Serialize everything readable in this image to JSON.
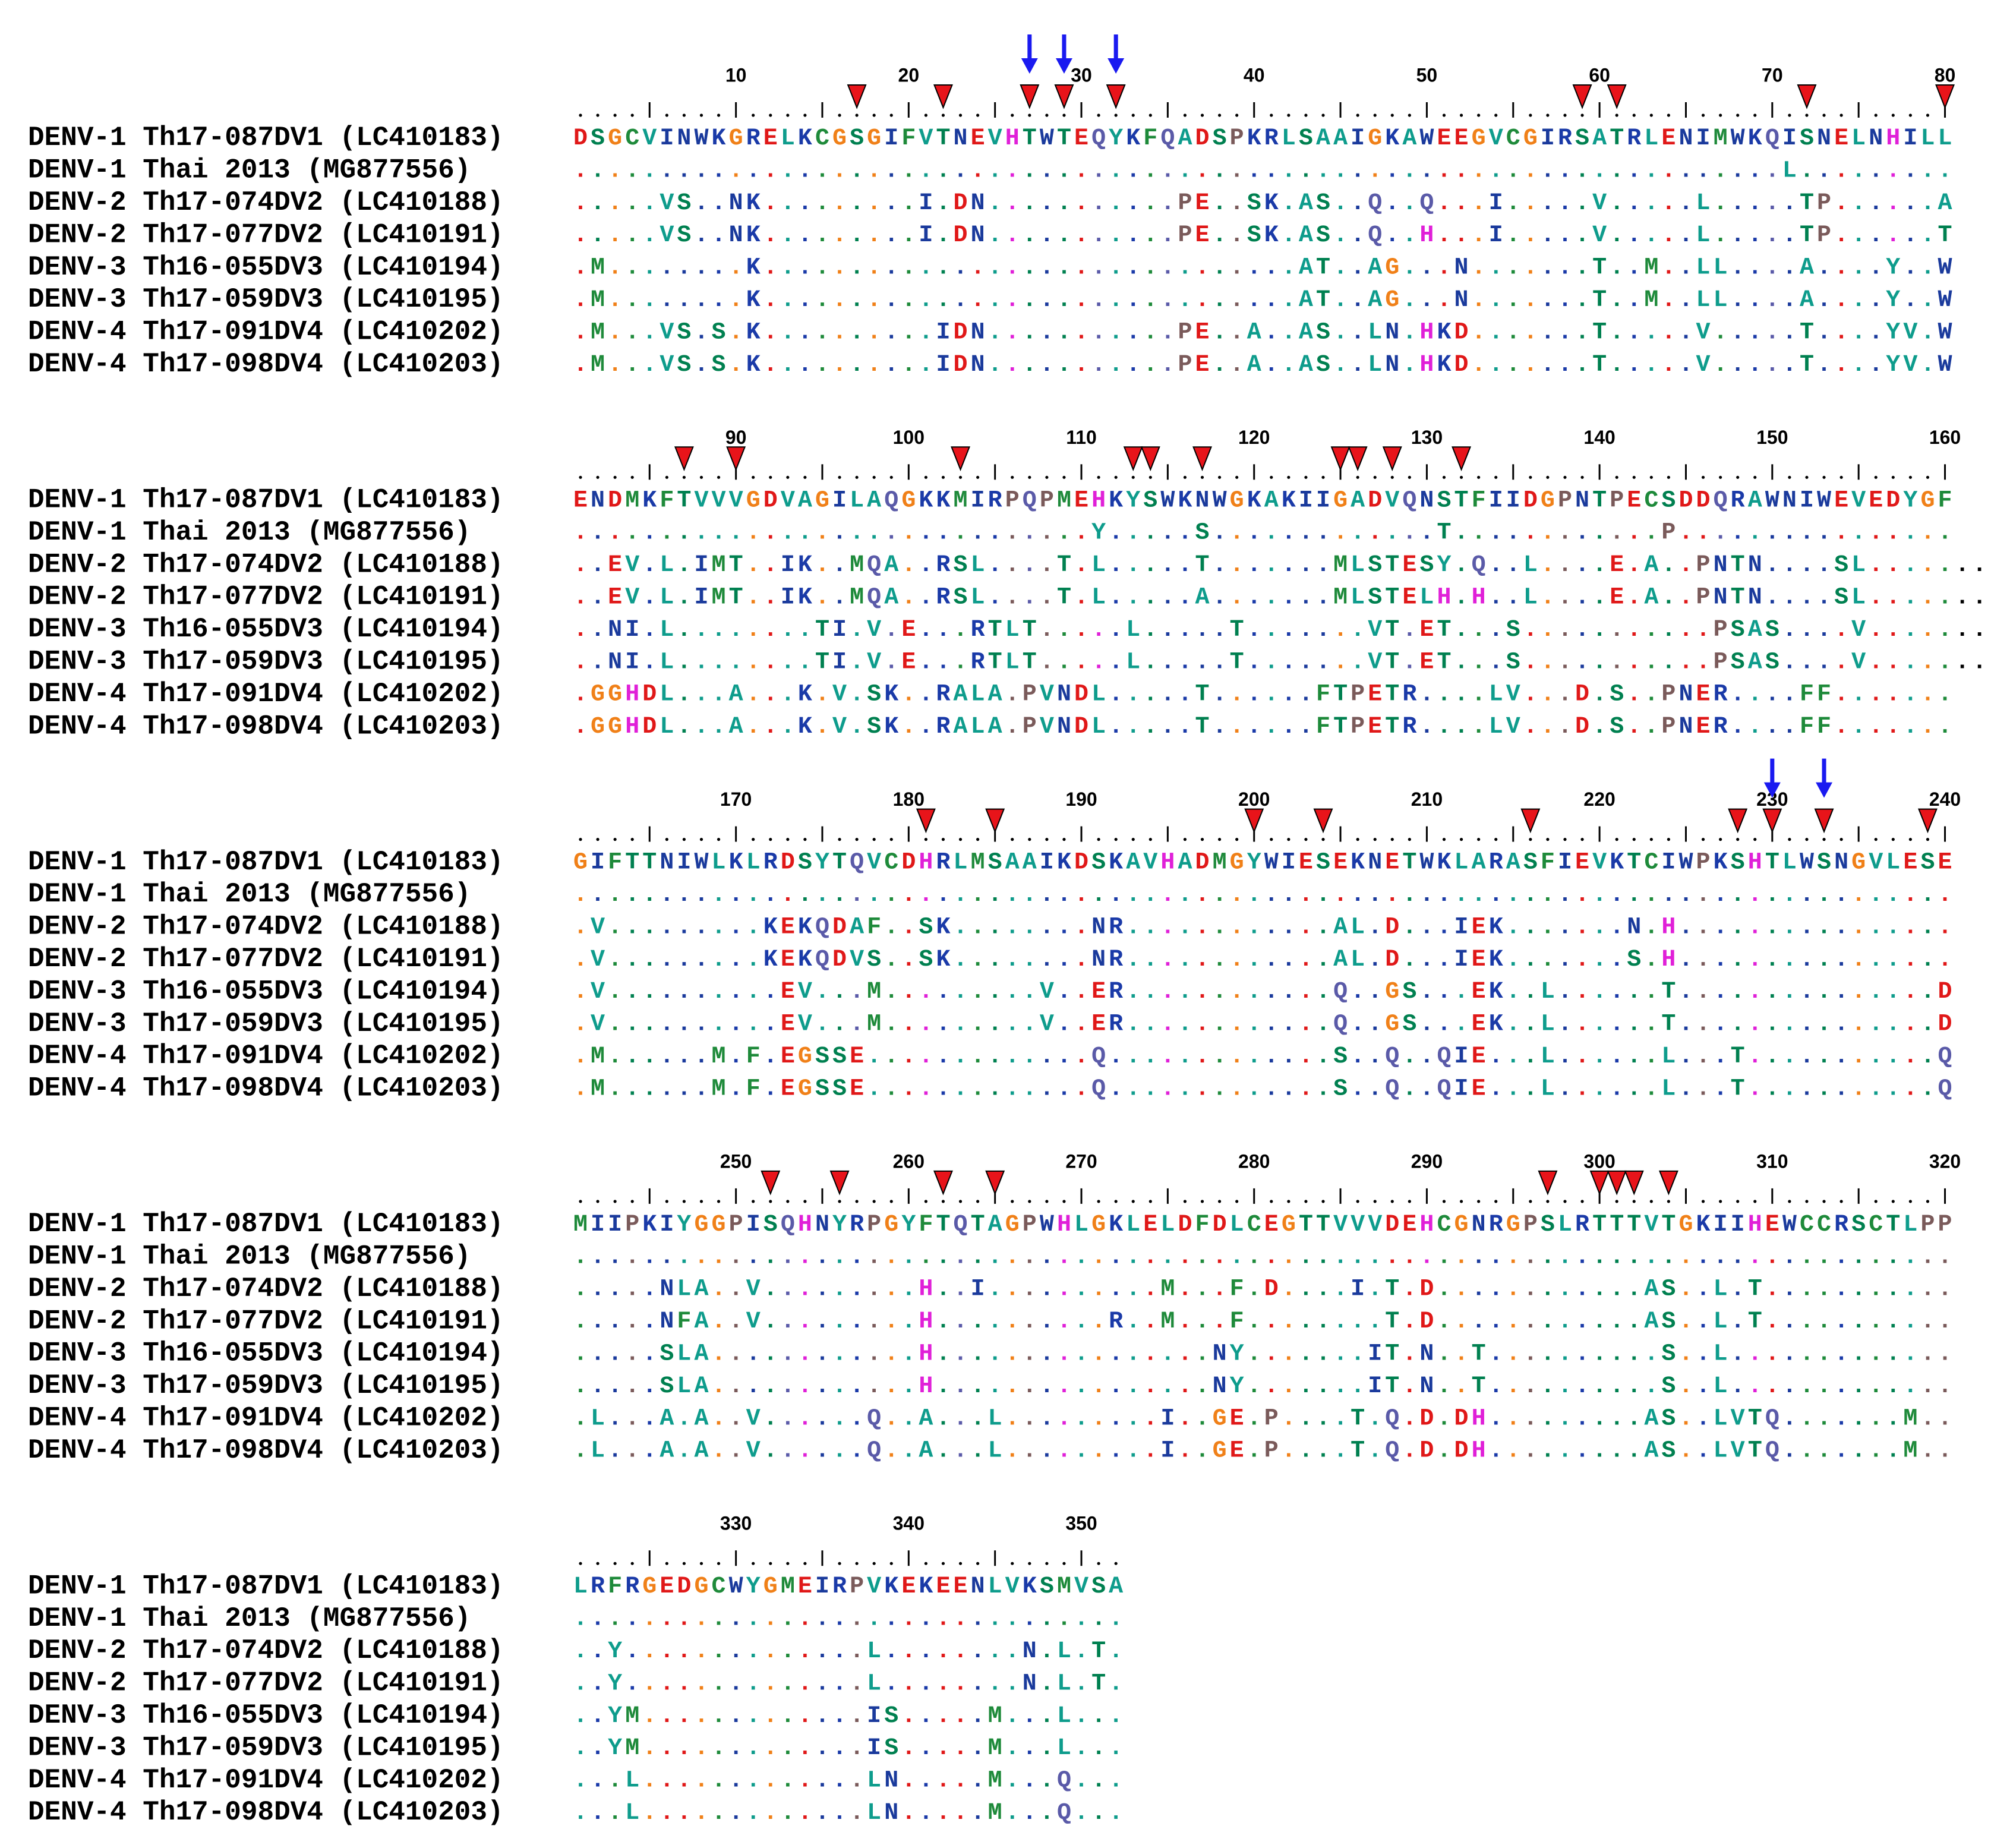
{
  "sequences": [
    {
      "name": "DENV-1 Th17-087DV1 (LC410183)",
      "segments": [
        "DSGCVINWKGRELKCGSGIFVTNEVHTWTEQYKFQADSPKRLSAAIGKAWEEGVCGIRSATRLENIMWKQISNELNHILL",
        "ENDMKFTVVVGDVAGILAQGKKMIRPQPMEHKYSWKNWGKAKIIGADVQNSTFIIDGPNTPECSDDQRAWNIWEVEDYGF",
        "GIFTTNIWLKLRDSYTQVCDHRLMSAAIKDSKAVHADMGYWIESEKNETWKLARASFIEVKTCIWPKSHTLWSNGVLESE",
        "MIIPKIYGGPISQHNYRPGYFTQTAGPWHLGKLELDFDLCEGTTVVVDEHCGNRGPSLRTTTVTGKIIHEWCCRSCTLPP",
        "LRFRGEDGCWYGMEIRPVKEKEENLVKSMVSA"
      ]
    },
    {
      "name": "DENV-1 Thai 2013 (MG877556)",
      "segments": [
        "......................................................................L.........",
        "..............................Y.....S.............T............P................",
        "................................................................................",
        "................................................................................",
        "................................"
      ]
    },
    {
      "name": "DENV-2 Th17-074DV2 (LC410188)",
      "segments": [
        ".....VS..NK.........I.DN...........PE..SK.AS..Q..Q...I.....V.....L.....TP......A",
        "..EV.L.IMT..IK..MQA..RSL....T.L.....T.......MLSTESY.Q..L....E.A..PNTN....SL.......",
        ".V.........KEKQDAF..SK........NR............AL.D...IEK.......N.H................",
        ".....NLA..V.........H..I..........M...F.D....I.T.D............AS..L.T...........",
        "..Y..............L........N.L.T."
      ]
    },
    {
      "name": "DENV-2 Th17-077DV2 (LC410191)",
      "segments": [
        ".....VS..NK.........I.DN...........PE..SK.AS..Q..H...I.....V.....L.....TP......T",
        "..EV.L.IMT..IK..MQA..RSL....T.L.....A.......MLSTELH.H..L....E.A..PNTN....SL.......",
        ".V.........KEKQDVS..SK........NR............AL.D...IEK.......S.H................",
        ".....NFA..V.........H..........R..M...F........T.D............AS..L.T...........",
        "..Y..............L........N.L.T."
      ]
    },
    {
      "name": "DENV-3 Th16-055DV3 (LC410194)",
      "segments": [
        ".M........K...............................AT..AG...N.......T..M..LL....A....Y..W",
        "..NI.L........TI.V.E...RTLT.....L.....T.......VT.ET...S...........PSAS....V........",
        ".V..........EV...M.........V..ER............Q..GS...EK..L......T...............D",
        ".....SLA............H................NY.......IT.N..T..........S..L.............",
        "..YM.............IS.....M...L..."
      ]
    },
    {
      "name": "DENV-3 Th17-059DV3 (LC410195)",
      "segments": [
        ".M........K...............................AT..AG...N.......T..M..LL....A....Y..W",
        "..NI.L........TI.V.E...RTLT.....L.....T.......VT.ET...S...........PSAS....V........",
        ".V..........EV...M.........V..ER............Q..GS...EK..L......T...............D",
        ".....SLA............H................NY.......IT.N..T..........S..L.............",
        "..YM.............IS.....M...L..."
      ]
    },
    {
      "name": "DENV-4 Th17-091DV4 (LC410202)",
      "segments": [
        ".M...VS.S.K..........IDN...........PE..A..AS..LN.HKD.......T.....V.....T....YV.W",
        ".GGHDL...A...K.V.SK..RALA.PVNDL.....T......FTPETR....LV...D.S..PNER....FF.......",
        ".M......M.F.EGSSE.............Q.............S..Q..QIE...L......L...T...........Q",
        ".L...A.A..V......Q..A...L.........I..GE.P....T.Q.D.DH.........AS..LVTQ.......M..",
        "...L.............LN.....M...Q..."
      ]
    },
    {
      "name": "DENV-4 Th17-098DV4 (LC410203)",
      "segments": [
        ".M...VS.S.K..........IDN...........PE..A..AS..LN.HKD.......T.....V.....T....YV.W",
        ".GGHDL...A...K.V.SK..RALA.PVNDL.....T......FTPETR....LV...D.S..PNER....FF.......",
        ".M......M.F.EGSSE.............Q.............S..Q..QIE...L......L...T...........Q",
        ".L...A.A..V......Q..A...L.........I..GE.P....T.Q.D.DH.........AS..LVTQ.......M..",
        "...L.............LN.....M...Q..."
      ]
    }
  ],
  "ruler_numbers": [
    10,
    20,
    30,
    40,
    50,
    60,
    70,
    80,
    90,
    100,
    110,
    120,
    130,
    140,
    150,
    160,
    170,
    180,
    190,
    200,
    210,
    220,
    230,
    240,
    250,
    260,
    270,
    280,
    290,
    300,
    310,
    320,
    330,
    340,
    350
  ],
  "red_triangles": [
    17,
    22,
    27,
    29,
    32,
    59,
    61,
    72,
    80,
    87,
    90,
    103,
    113,
    114,
    117,
    125,
    126,
    128,
    132,
    181,
    185,
    200,
    204,
    216,
    228,
    230,
    233,
    239,
    252,
    256,
    262,
    265,
    297,
    300,
    301,
    302,
    304
  ],
  "blue_arrows": [
    27,
    29,
    32,
    230,
    233
  ],
  "residue_colors": {
    "A": "#0e9c8c",
    "V": "#0e9c8c",
    "L": "#0e9c8c",
    "Y": "#0e9c8c",
    "I": "#1a3a9c",
    "W": "#1a3a9c",
    "N": "#1a3a9c",
    "M": "#1e8a3a",
    "F": "#1e8a3a",
    "C": "#1e8a3a",
    "S": "#008050",
    "T": "#008050",
    "G": "#f08018",
    "P": "#7a5a5a",
    "Q": "#5a5aa8",
    "H": "#e020d8",
    "D": "#e01818",
    "E": "#e01818",
    "K": "#1a3aa8",
    "R": "#1a3aa8"
  }
}
